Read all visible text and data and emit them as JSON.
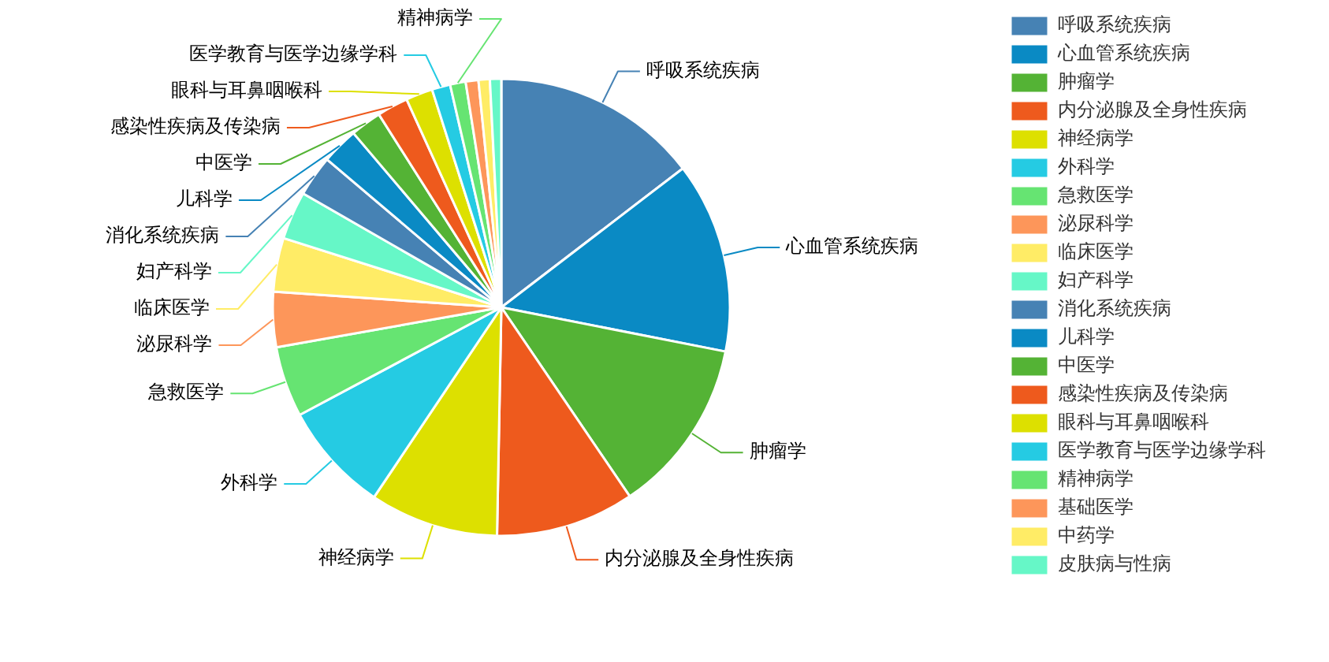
{
  "chart_data": {
    "type": "pie",
    "legend": "top right",
    "categories": [
      "呼吸系统疾病",
      "心血管系统疾病",
      "肿瘤学",
      "内分泌腺及全身性疾病",
      "神经病学",
      "外科学",
      "急救医学",
      "泌尿科学",
      "临床医学",
      "妇产科学",
      "消化系统疾病",
      "儿科学",
      "中医学",
      "感染性疾病及传染病",
      "眼科与耳鼻咽喉科",
      "医学教育与医学边缘学科",
      "精神病学",
      "基础医学",
      "中药学",
      "皮肤病与性病"
    ],
    "values": [
      14.6,
      13.5,
      12.4,
      9.8,
      9.1,
      7.8,
      5.0,
      3.9,
      3.8,
      3.4,
      2.9,
      2.6,
      2.2,
      2.2,
      1.9,
      1.3,
      1.1,
      0.9,
      0.8,
      0.8
    ],
    "colors": [
      "#4682b4",
      "#0a8ac4",
      "#54b335",
      "#ee5a1d",
      "#dde000",
      "#25cbe3",
      "#66e472",
      "#fd965a",
      "#ffec66",
      "#66f7c7",
      "#4682b4",
      "#0a8ac4",
      "#54b335",
      "#ee5a1d",
      "#dde000",
      "#25cbe3",
      "#66e472",
      "#fd965a",
      "#ffec66",
      "#66f7c7"
    ]
  }
}
